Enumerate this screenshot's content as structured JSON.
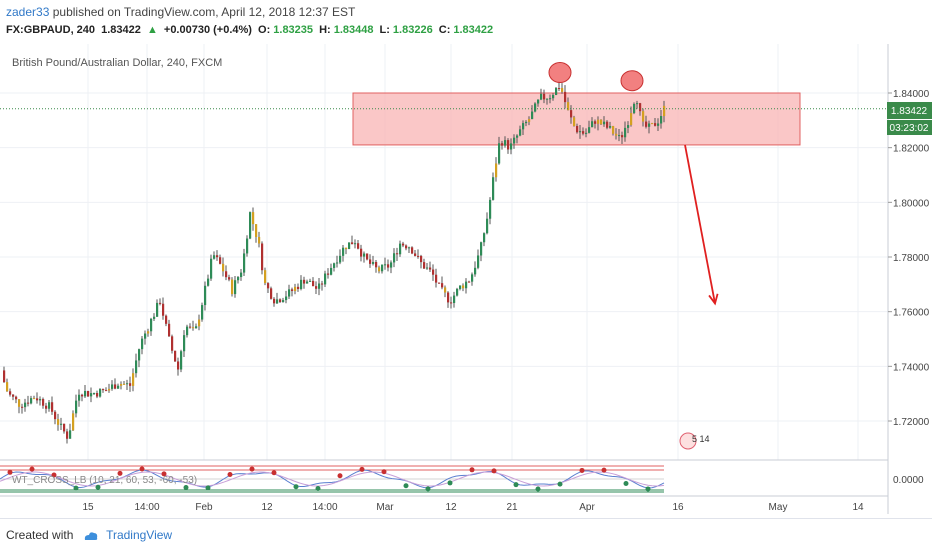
{
  "header": {
    "author": "zader33",
    "published_text": "published on TradingView.com, April 12, 2018 12:37 EST",
    "symbol": "FX:GBPAUD, 240",
    "last": "1.83422",
    "change": "+0.00730 (+0.4%)",
    "o_label": "O:",
    "o_val": "1.83235",
    "h_label": "H:",
    "h_val": "1.83448",
    "l_label": "L:",
    "l_val": "1.83226",
    "c_label": "C:",
    "c_val": "1.83422",
    "change_arrow": "▲"
  },
  "chart": {
    "pane_title": "British Pound/Australian Dollar, 240, FXCM",
    "price_tag": "1.83422",
    "time_tag": "03:23:02",
    "osc_label": "WT_CROSS_LB (10, 21, 60, 53, -60, -53)",
    "osc_tick": "0.0000",
    "event_label": "5 14"
  },
  "chart_data": {
    "type": "candlestick",
    "title": "British Pound/Australian Dollar, 240, FXCM",
    "y_ticks": [
      "1.84000",
      "1.82000",
      "1.80000",
      "1.78000",
      "1.76000",
      "1.74000",
      "1.72000"
    ],
    "ylim": [
      1.711,
      1.85
    ],
    "x_ticks": [
      "15",
      "14:00",
      "Feb",
      "12",
      "14:00",
      "Mar",
      "12",
      "21",
      "Apr",
      "16",
      "May",
      "14"
    ],
    "last_price": 1.83422,
    "close_path": [
      [
        0,
        1.7385
      ],
      [
        8,
        1.73
      ],
      [
        20,
        1.726
      ],
      [
        35,
        1.729
      ],
      [
        50,
        1.725
      ],
      [
        60,
        1.718
      ],
      [
        68,
        1.714
      ],
      [
        78,
        1.731
      ],
      [
        90,
        1.73
      ],
      [
        105,
        1.731
      ],
      [
        118,
        1.734
      ],
      [
        130,
        1.733
      ],
      [
        140,
        1.748
      ],
      [
        150,
        1.756
      ],
      [
        160,
        1.764
      ],
      [
        170,
        1.748
      ],
      [
        178,
        1.739
      ],
      [
        185,
        1.755
      ],
      [
        195,
        1.752
      ],
      [
        205,
        1.768
      ],
      [
        213,
        1.781
      ],
      [
        222,
        1.776
      ],
      [
        232,
        1.768
      ],
      [
        242,
        1.776
      ],
      [
        250,
        1.796
      ],
      [
        258,
        1.786
      ],
      [
        265,
        1.77
      ],
      [
        275,
        1.764
      ],
      [
        290,
        1.767
      ],
      [
        305,
        1.772
      ],
      [
        318,
        1.768
      ],
      [
        330,
        1.776
      ],
      [
        345,
        1.784
      ],
      [
        355,
        1.786
      ],
      [
        365,
        1.779
      ],
      [
        378,
        1.775
      ],
      [
        390,
        1.777
      ],
      [
        400,
        1.785
      ],
      [
        410,
        1.784
      ],
      [
        420,
        1.778
      ],
      [
        432,
        1.774
      ],
      [
        440,
        1.768
      ],
      [
        450,
        1.764
      ],
      [
        460,
        1.769
      ],
      [
        470,
        1.772
      ],
      [
        480,
        1.782
      ],
      [
        488,
        1.796
      ],
      [
        495,
        1.813
      ],
      [
        500,
        1.823
      ],
      [
        510,
        1.82
      ],
      [
        520,
        1.826
      ],
      [
        530,
        1.831
      ],
      [
        540,
        1.838
      ],
      [
        550,
        1.839
      ],
      [
        560,
        1.843
      ],
      [
        568,
        1.833
      ],
      [
        575,
        1.827
      ],
      [
        585,
        1.825
      ],
      [
        595,
        1.83
      ],
      [
        605,
        1.828
      ],
      [
        612,
        1.826
      ],
      [
        620,
        1.823
      ],
      [
        628,
        1.83
      ],
      [
        636,
        1.84
      ],
      [
        642,
        1.828
      ],
      [
        650,
        1.827
      ],
      [
        658,
        1.83
      ],
      [
        664,
        1.8342
      ]
    ],
    "resistance_zone": [
      1.821,
      1.84
    ],
    "peaks": [
      [
        560,
        1.8475
      ],
      [
        632,
        1.8445
      ]
    ],
    "projection_arrow": {
      "from": [
        685,
        1.821
      ],
      "to": [
        715,
        1.763
      ]
    }
  }
}
